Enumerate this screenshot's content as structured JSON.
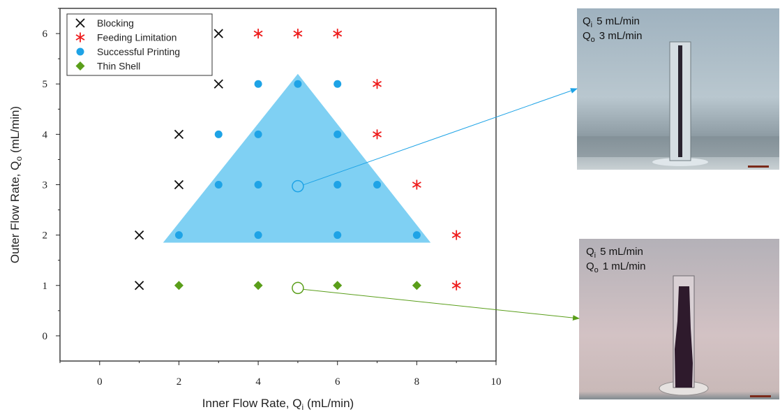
{
  "chart_data": {
    "type": "scatter",
    "xlabel": {
      "main": "Inner Flow Rate, Q",
      "sub": "i",
      "unit": "(mL/min)"
    },
    "ylabel": {
      "main": "Outer Flow Rate, Q",
      "sub": "o",
      "unit": "(mL/min)"
    },
    "xlim": [
      -1,
      10
    ],
    "ylim": [
      -0.5,
      6.5
    ],
    "xticks": [
      0,
      2,
      4,
      6,
      8,
      10
    ],
    "yticks": [
      0,
      1,
      2,
      3,
      4,
      5,
      6
    ],
    "legend": "upper left",
    "series": [
      {
        "name": "Blocking",
        "color": "#111111",
        "marker": "x",
        "x": [
          1,
          1,
          2,
          2,
          3,
          3
        ],
        "y": [
          1,
          2,
          3,
          4,
          5,
          6
        ]
      },
      {
        "name": "Feeding Limitation",
        "color": "#ee1c1c",
        "marker": "asterisk",
        "x": [
          4,
          5,
          6,
          7,
          7,
          8,
          9,
          9
        ],
        "y": [
          6,
          6,
          6,
          5,
          4,
          3,
          2,
          1
        ]
      },
      {
        "name": "Successful Printing",
        "color": "#1ea3e6",
        "marker": "circle",
        "x": [
          4,
          5,
          6,
          3,
          4,
          6,
          3,
          4,
          6,
          7,
          2,
          4,
          6,
          8
        ],
        "y": [
          5,
          5,
          5,
          4,
          4,
          4,
          3,
          3,
          3,
          3,
          2,
          2,
          2,
          2
        ]
      },
      {
        "name": "Thin Shell",
        "color": "#5a9e1a",
        "marker": "diamond",
        "x": [
          2,
          4,
          6,
          8
        ],
        "y": [
          1,
          1,
          1,
          1
        ]
      }
    ]
  },
  "insets": [
    {
      "lines": [
        {
          "sym": "Q",
          "sub": "i",
          "text": "5 mL/min"
        },
        {
          "sym": "Q",
          "sub": "o",
          "text": "3 mL/min"
        }
      ]
    },
    {
      "lines": [
        {
          "sym": "Q",
          "sub": "i",
          "text": "5 mL/min"
        },
        {
          "sym": "Q",
          "sub": "o",
          "text": "1 mL/min"
        }
      ]
    }
  ]
}
